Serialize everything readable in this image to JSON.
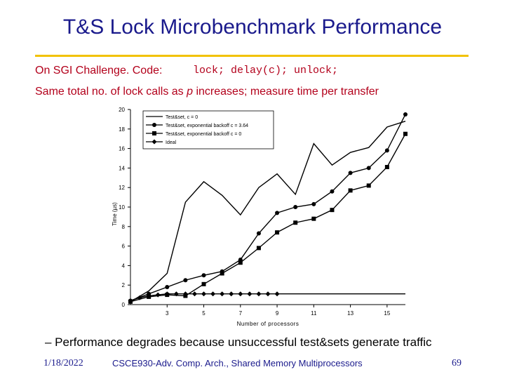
{
  "slide": {
    "title": "T&S Lock Microbenchmark Performance",
    "line_a": "On SGI Challenge. Code:",
    "code": "lock; delay(c); unlock;",
    "line_b_pre": "Same total no. of lock calls as ",
    "line_b_var": "p",
    "line_b_post": " increases; measure time per transfer",
    "bullet": "– Performance degrades because unsuccessful test&sets generate traffic",
    "footer_date": "1/18/2022",
    "footer_course": "CSCE930-Adv. Comp. Arch., Shared Memory Multiprocessors",
    "footer_page": "69",
    "accent_title": "#1a1a8c",
    "accent_text": "#b3001b",
    "accent_rule": "#f2c200"
  },
  "chart_data": {
    "type": "line",
    "xlabel": "Number of processors",
    "ylabel": "Time (µs)",
    "xlim": [
      1,
      16
    ],
    "ylim": [
      0,
      20
    ],
    "x_ticks": [
      3,
      5,
      7,
      9,
      11,
      13,
      15
    ],
    "y_ticks": [
      0,
      2,
      4,
      6,
      8,
      10,
      12,
      14,
      16,
      18,
      20
    ],
    "grid": false,
    "legend_position": "top-left",
    "series": [
      {
        "name": "Test&set, c = 0",
        "marker": "none",
        "x": [
          1,
          2,
          3,
          4,
          5,
          6,
          7,
          8,
          9,
          10,
          11,
          12,
          13,
          14,
          15,
          16
        ],
        "y": [
          0.3,
          1.4,
          3.2,
          10.5,
          12.6,
          11.2,
          9.2,
          12.0,
          13.4,
          11.3,
          16.5,
          14.3,
          15.6,
          16.1,
          18.2,
          18.8
        ]
      },
      {
        "name": "Test&set, exponential backoff c = 3.64",
        "marker": "circle",
        "x": [
          1,
          2,
          3,
          4,
          5,
          6,
          7,
          8,
          9,
          10,
          11,
          12,
          13,
          14,
          15,
          16
        ],
        "y": [
          0.4,
          1.1,
          1.8,
          2.5,
          3.0,
          3.4,
          4.6,
          7.3,
          9.4,
          10.0,
          10.3,
          11.6,
          13.5,
          14.0,
          15.8,
          19.5
        ]
      },
      {
        "name": "Test&set, exponential backoff c = 0",
        "marker": "square",
        "x": [
          1,
          2,
          3,
          4,
          5,
          6,
          7,
          8,
          9,
          10,
          11,
          12,
          13,
          14,
          15,
          16
        ],
        "y": [
          0.3,
          0.8,
          1.0,
          0.9,
          2.1,
          3.2,
          4.3,
          5.8,
          7.4,
          8.4,
          8.8,
          9.7,
          11.7,
          12.2,
          14.1,
          17.5
        ]
      },
      {
        "name": "Ideal",
        "marker": "diamond",
        "x": [
          1,
          1.5,
          2,
          2.5,
          3,
          3.5,
          4,
          4.5,
          5,
          5.5,
          6,
          6.5,
          7,
          7.5,
          8,
          8.5,
          9,
          9.5,
          10,
          10.5,
          11,
          11.5,
          12,
          12.5,
          13,
          13.5,
          14,
          14.5,
          15,
          15.5,
          16
        ],
        "y": [
          0.4,
          0.7,
          0.9,
          1.0,
          1.1,
          1.1,
          1.1,
          1.1,
          1.1,
          1.1,
          1.1,
          1.1,
          1.1,
          1.1,
          1.1,
          1.1,
          1.1,
          1.1,
          1.1,
          1.1,
          1.1,
          1.1,
          1.1,
          1.1,
          1.1,
          1.1,
          1.1,
          1.1,
          1.1,
          1.1,
          1.1
        ]
      }
    ]
  }
}
